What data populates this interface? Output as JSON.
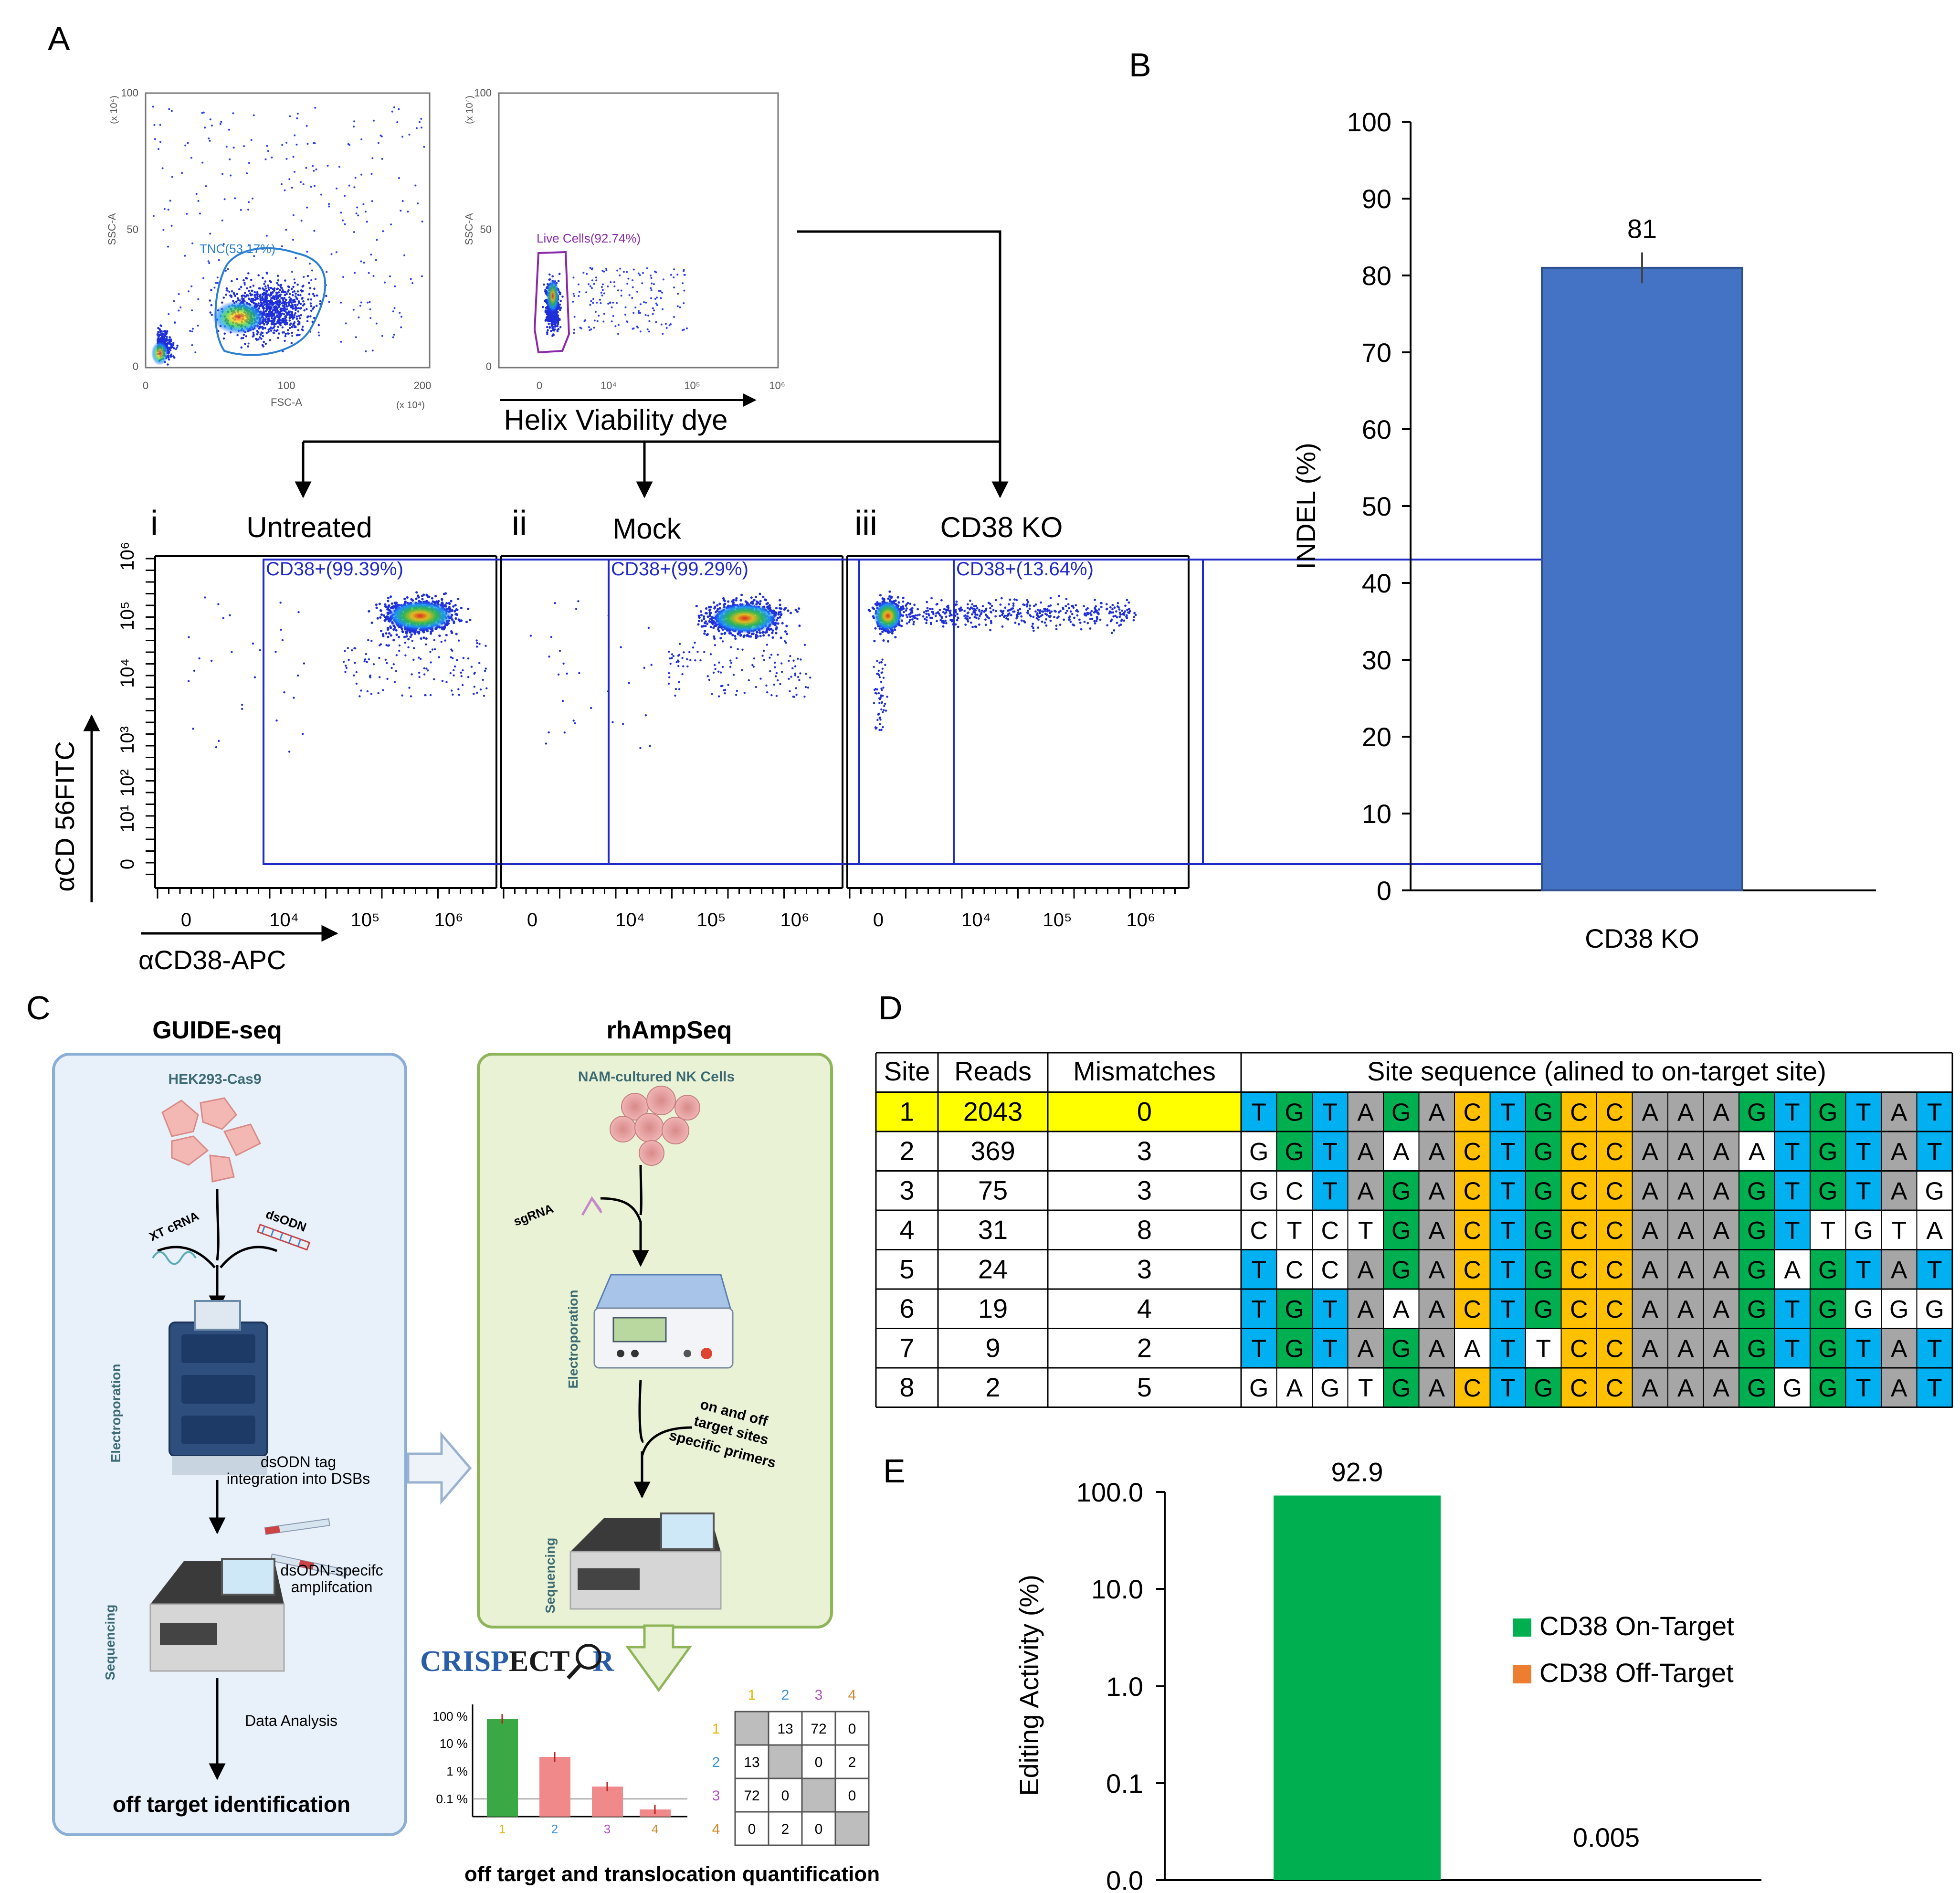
{
  "panel_labels": {
    "a": "A",
    "b": "B",
    "c": "C",
    "d": "D",
    "e": "E"
  },
  "panel_a": {
    "plot1": {
      "x_axis": "FSC-A",
      "y_axis": "SSC-A",
      "x_scale": "(x 10⁴)",
      "y_scale": "(x 10⁴)",
      "x_ticks": [
        "0",
        "100",
        "200"
      ],
      "y_ticks": [
        "0",
        "50",
        "100"
      ],
      "gate": "TNC(53.17%)"
    },
    "plot2": {
      "y_axis": "SSC-A",
      "y_scale": "(x 10⁴)",
      "x_ticks": [
        "0",
        "10⁴",
        "10⁵",
        "10⁶"
      ],
      "y_ticks": [
        "0",
        "50",
        "100"
      ],
      "gate": "Live Cells(92.74%)",
      "dye_label": "Helix Viability dye"
    },
    "conditions": [
      {
        "numeral": "i",
        "name": "Untreated",
        "gate": "CD38+(99.39%)"
      },
      {
        "numeral": "ii",
        "name": "Mock",
        "gate": "CD38+(99.29%)"
      },
      {
        "numeral": "iii",
        "name": "CD38 KO",
        "gate": "CD38+(13.64%)"
      }
    ],
    "x_ticks": [
      "0",
      "10⁴",
      "10⁵",
      "10⁶"
    ],
    "y_ticks": [
      "0",
      "10¹",
      "10²",
      "10³",
      "10⁴",
      "10⁵",
      "10⁶"
    ],
    "y_axis_label": "αCD 56FITC",
    "x_axis_label": "αCD38-APC"
  },
  "chart_data": [
    {
      "type": "bar",
      "panel": "B",
      "categories": [
        "CD38 KO"
      ],
      "values": [
        81
      ],
      "error": [
        2
      ],
      "data_labels": [
        "81"
      ],
      "ylabel": "INDEL (%)",
      "ylim": [
        0,
        100
      ],
      "yticks": [
        "0",
        "10",
        "20",
        "30",
        "40",
        "50",
        "60",
        "70",
        "80",
        "90",
        "100"
      ],
      "bar_color": "#4472c4"
    },
    {
      "type": "bar",
      "panel": "E",
      "yscale": "log",
      "categories": [
        "CD38 On-Target",
        "CD38 Off-Target"
      ],
      "values": [
        92.9,
        0.005
      ],
      "data_labels": [
        "92.9",
        "0.005"
      ],
      "ylabel": "Editing Activity (%)",
      "yticks": [
        "0.0",
        "0.1",
        "1.0",
        "10.0",
        "100.0"
      ],
      "legend": [
        {
          "label": "CD38 On-Target",
          "color": "#00b050"
        },
        {
          "label": "CD38 Off-Target",
          "color": "#ed7d31"
        }
      ],
      "legend_position": "right"
    },
    {
      "type": "bar",
      "panel": "C-inset",
      "yscale": "log",
      "categories": [
        "1",
        "2",
        "3",
        "4"
      ],
      "yticks": [
        "100 %",
        "10 %",
        "1 %",
        "0.1 %"
      ],
      "colors": [
        "#3aa845",
        "#f08a8a",
        "#f08a8a",
        "#f08a8a"
      ]
    }
  ],
  "panel_c": {
    "guide": {
      "title": "GUIDE-seq",
      "cells": "HEK293-Cas9",
      "rna": "XT cRNA",
      "odn": "dsODN",
      "electro": "Electroporation",
      "tag1": "dsODN tag",
      "tag2": "integration into DSBs",
      "seq": "Sequencing",
      "amp1": "dsODN-specifc",
      "amp2": "amplifcation",
      "analysis": "Data Analysis",
      "result": "off target identification"
    },
    "rhamp": {
      "title": "rhAmpSeq",
      "cells": "NAM-cultured NK Cells",
      "sgrna": "sgRNA",
      "electro": "Electroporation",
      "p1": "on and off",
      "p2": "target sites",
      "p3": "specific primers",
      "seq": "Sequencing"
    },
    "crispector_a": "CRISP",
    "crispector_b": "ECT",
    "crispector_c": "R",
    "matrix_headers": [
      "1",
      "2",
      "3",
      "4"
    ],
    "matrix_header_colors": [
      "#e6b800",
      "#3a8fd6",
      "#b04fc0",
      "#d08a2a"
    ],
    "matrix": [
      [
        "",
        "13",
        "72",
        "0"
      ],
      [
        "13",
        "",
        "0",
        "2"
      ],
      [
        "72",
        "0",
        "",
        "0"
      ],
      [
        "0",
        "2",
        "0",
        ""
      ]
    ],
    "footer": "off target and translocation quantification"
  },
  "panel_d": {
    "headers": [
      "Site",
      "Reads",
      "Mismatches",
      "Site sequence (alined to on-target site)"
    ],
    "rows": [
      {
        "site": "1",
        "reads": "2043",
        "mm": "0",
        "seq": "TGTAGACTGCCAAAGTGTAT"
      },
      {
        "site": "2",
        "reads": "369",
        "mm": "3",
        "seq": "GGTAAACTGCCAAAATGTAT"
      },
      {
        "site": "3",
        "reads": "75",
        "mm": "3",
        "seq": "GCTAGACTGCCAAAGTGTAG"
      },
      {
        "site": "4",
        "reads": "31",
        "mm": "8",
        "seq": "CTCTGACTGCCAAAGTTGTA"
      },
      {
        "site": "5",
        "reads": "24",
        "mm": "3",
        "seq": "TCCAGACTGCCAAAGAGTAT"
      },
      {
        "site": "6",
        "reads": "19",
        "mm": "4",
        "seq": "TGTAAACTGCCAAAGTGGGG"
      },
      {
        "site": "7",
        "reads": "9",
        "mm": "2",
        "seq": "TGTAGAATTCCAAAGTGTAT"
      },
      {
        "site": "8",
        "reads": "2",
        "mm": "5",
        "seq": "GAGTGACTGCCAAAGGGTAT"
      }
    ],
    "base_colors": {
      "T": "#00b0f0",
      "G": "#00b050",
      "A": "#a6a6a6",
      "C": "#ffc000"
    },
    "highlight_color": "#ffff00"
  }
}
